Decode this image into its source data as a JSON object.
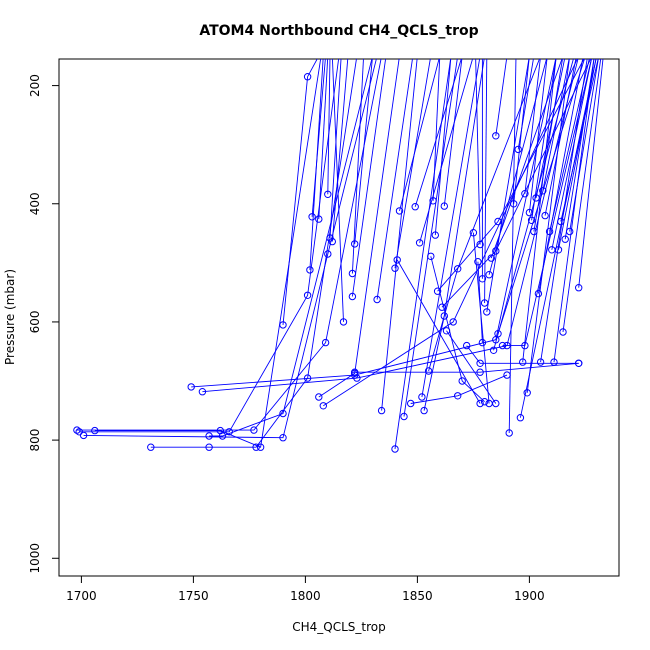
{
  "chart_data": {
    "type": "line",
    "title": "ATOM4 Northbound CH4_QCLS_trop",
    "xlabel": "CH4_QCLS_trop",
    "ylabel": "Pressure (mbar)",
    "xlim": [
      1690,
      1940
    ],
    "ylim": [
      1030,
      155
    ],
    "y_reversed": true,
    "grid": false,
    "series_color": "#0000ff",
    "xticks": [
      1700,
      1750,
      1800,
      1850,
      1900
    ],
    "yticks": [
      200,
      400,
      600,
      800,
      1000
    ],
    "series": [
      {
        "points": [
          [
            1731,
            812
          ],
          [
            1757,
            812
          ],
          [
            1778,
            812
          ],
          [
            1801,
            695
          ],
          [
            1823,
            150
          ]
        ]
      },
      {
        "points": [
          [
            1757,
            793
          ],
          [
            1763,
            793
          ],
          [
            1790,
            755
          ],
          [
            1830,
            150
          ]
        ]
      },
      {
        "points": [
          [
            1698,
            783
          ],
          [
            1777,
            783
          ],
          [
            1809,
            635
          ],
          [
            1834,
            150
          ]
        ]
      },
      {
        "points": [
          [
            1701,
            792
          ],
          [
            1790,
            796
          ],
          [
            1810,
            485
          ],
          [
            1832,
            150
          ]
        ]
      },
      {
        "points": [
          [
            1699,
            786
          ],
          [
            1766,
            786
          ],
          [
            1801,
            555
          ],
          [
            1815,
            150
          ]
        ]
      },
      {
        "points": [
          [
            1706,
            784
          ],
          [
            1762,
            784
          ],
          [
            1780,
            812
          ],
          [
            1807,
            150
          ]
        ]
      },
      {
        "points": [
          [
            1749,
            710
          ],
          [
            1822,
            690
          ],
          [
            1885,
            630
          ],
          [
            1912,
            150
          ]
        ]
      },
      {
        "points": [
          [
            1754,
            718
          ],
          [
            1823,
            695
          ],
          [
            1890,
            640
          ],
          [
            1922,
            150
          ]
        ]
      },
      {
        "points": [
          [
            1790,
            605
          ],
          [
            1801,
            185
          ],
          [
            1806,
            150
          ]
        ]
      },
      {
        "points": [
          [
            1802,
            512
          ],
          [
            1808,
            150
          ]
        ]
      },
      {
        "points": [
          [
            1803,
            422
          ],
          [
            1809,
            150
          ]
        ]
      },
      {
        "points": [
          [
            1806,
            426
          ],
          [
            1810,
            150
          ]
        ]
      },
      {
        "points": [
          [
            1810,
            384
          ],
          [
            1811,
            150
          ]
        ]
      },
      {
        "points": [
          [
            1811,
            458
          ],
          [
            1816,
            150
          ]
        ]
      },
      {
        "points": [
          [
            1812,
            464
          ],
          [
            1819,
            150
          ]
        ]
      },
      {
        "points": [
          [
            1817,
            600
          ],
          [
            1812,
            150
          ]
        ]
      },
      {
        "points": [
          [
            1821,
            518
          ],
          [
            1826,
            150
          ]
        ]
      },
      {
        "points": [
          [
            1822,
            468
          ],
          [
            1830,
            150
          ]
        ]
      },
      {
        "points": [
          [
            1821,
            557
          ],
          [
            1836,
            150
          ]
        ]
      },
      {
        "points": [
          [
            1806,
            727
          ],
          [
            1822,
            687
          ],
          [
            1842,
            150
          ]
        ]
      },
      {
        "points": [
          [
            1808,
            742
          ],
          [
            1866,
            600
          ],
          [
            1922,
            150
          ]
        ]
      },
      {
        "points": [
          [
            1832,
            562
          ],
          [
            1848,
            150
          ]
        ]
      },
      {
        "points": [
          [
            1834,
            750
          ],
          [
            1850,
            150
          ]
        ]
      },
      {
        "points": [
          [
            1840,
            509
          ],
          [
            1856,
            150
          ]
        ]
      },
      {
        "points": [
          [
            1840,
            815
          ],
          [
            1865,
            150
          ]
        ]
      },
      {
        "points": [
          [
            1842,
            412
          ],
          [
            1860,
            150
          ]
        ]
      },
      {
        "points": [
          [
            1844,
            760
          ],
          [
            1868,
            150
          ]
        ]
      },
      {
        "points": [
          [
            1847,
            738
          ],
          [
            1868,
            725
          ],
          [
            1890,
            690
          ]
        ]
      },
      {
        "points": [
          [
            1849,
            405
          ],
          [
            1870,
            150
          ]
        ]
      },
      {
        "points": [
          [
            1851,
            466
          ],
          [
            1875,
            150
          ]
        ]
      },
      {
        "points": [
          [
            1852,
            727
          ],
          [
            1878,
            150
          ]
        ]
      },
      {
        "points": [
          [
            1853,
            750
          ],
          [
            1862,
            590
          ],
          [
            1880,
            150
          ]
        ]
      },
      {
        "points": [
          [
            1855,
            683
          ],
          [
            1868,
            510
          ],
          [
            1905,
            150
          ]
        ]
      },
      {
        "points": [
          [
            1857,
            395
          ],
          [
            1860,
            150
          ]
        ]
      },
      {
        "points": [
          [
            1858,
            453
          ],
          [
            1865,
            150
          ]
        ]
      },
      {
        "points": [
          [
            1859,
            548
          ],
          [
            1886,
            430
          ],
          [
            1925,
            150
          ]
        ]
      },
      {
        "points": [
          [
            1861,
            575
          ],
          [
            1885,
            480
          ],
          [
            1928,
            150
          ]
        ]
      },
      {
        "points": [
          [
            1862,
            404
          ],
          [
            1870,
            150
          ]
        ]
      },
      {
        "points": [
          [
            1856,
            489
          ],
          [
            1870,
            700
          ],
          [
            1880,
            735
          ]
        ]
      },
      {
        "points": [
          [
            1841,
            495
          ],
          [
            1878,
            738
          ]
        ]
      },
      {
        "points": [
          [
            1822,
            685
          ],
          [
            1878,
            685
          ],
          [
            1922,
            670
          ]
        ]
      },
      {
        "points": [
          [
            1863,
            615
          ],
          [
            1885,
            738
          ]
        ]
      },
      {
        "points": [
          [
            1872,
            640
          ],
          [
            1878,
            670
          ],
          [
            1922,
            670
          ]
        ]
      },
      {
        "points": [
          [
            1875,
            449
          ],
          [
            1882,
            738
          ]
        ]
      },
      {
        "points": [
          [
            1877,
            498
          ],
          [
            1879,
            635
          ]
        ]
      },
      {
        "points": [
          [
            1878,
            469
          ],
          [
            1876,
            150
          ]
        ]
      },
      {
        "points": [
          [
            1879,
            527
          ],
          [
            1879,
            150
          ]
        ]
      },
      {
        "points": [
          [
            1880,
            568
          ],
          [
            1881,
            150
          ]
        ]
      },
      {
        "points": [
          [
            1881,
            583
          ],
          [
            1900,
            150
          ]
        ]
      },
      {
        "points": [
          [
            1882,
            520
          ],
          [
            1908,
            150
          ]
        ]
      },
      {
        "points": [
          [
            1883,
            492
          ],
          [
            1915,
            150
          ]
        ]
      },
      {
        "points": [
          [
            1884,
            648
          ],
          [
            1920,
            150
          ]
        ]
      },
      {
        "points": [
          [
            1885,
            285
          ],
          [
            1890,
            150
          ]
        ]
      },
      {
        "points": [
          [
            1886,
            620
          ],
          [
            1925,
            150
          ]
        ]
      },
      {
        "points": [
          [
            1888,
            640
          ],
          [
            1898,
            640
          ],
          [
            1928,
            150
          ]
        ]
      },
      {
        "points": [
          [
            1891,
            788
          ],
          [
            1894,
            150
          ]
        ]
      },
      {
        "points": [
          [
            1893,
            400
          ],
          [
            1900,
            150
          ]
        ]
      },
      {
        "points": [
          [
            1895,
            308
          ],
          [
            1902,
            150
          ]
        ]
      },
      {
        "points": [
          [
            1896,
            762
          ],
          [
            1930,
            150
          ]
        ]
      },
      {
        "points": [
          [
            1897,
            668
          ],
          [
            1912,
            150
          ]
        ]
      },
      {
        "points": [
          [
            1898,
            383
          ],
          [
            1905,
            150
          ]
        ]
      },
      {
        "points": [
          [
            1899,
            720
          ],
          [
            1918,
            150
          ]
        ]
      },
      {
        "points": [
          [
            1900,
            415
          ],
          [
            1908,
            150
          ]
        ]
      },
      {
        "points": [
          [
            1901,
            428
          ],
          [
            1912,
            150
          ]
        ]
      },
      {
        "points": [
          [
            1902,
            447
          ],
          [
            1915,
            150
          ]
        ]
      },
      {
        "points": [
          [
            1903,
            390
          ],
          [
            1916,
            150
          ]
        ]
      },
      {
        "points": [
          [
            1904,
            552
          ],
          [
            1924,
            150
          ]
        ]
      },
      {
        "points": [
          [
            1905,
            668
          ],
          [
            1926,
            150
          ]
        ]
      },
      {
        "points": [
          [
            1906,
            378
          ],
          [
            1918,
            150
          ]
        ]
      },
      {
        "points": [
          [
            1907,
            420
          ],
          [
            1921,
            150
          ]
        ]
      },
      {
        "points": [
          [
            1909,
            447
          ],
          [
            1927,
            150
          ]
        ]
      },
      {
        "points": [
          [
            1910,
            478
          ],
          [
            1928,
            150
          ]
        ]
      },
      {
        "points": [
          [
            1911,
            668
          ],
          [
            1929,
            150
          ]
        ]
      },
      {
        "points": [
          [
            1913,
            478
          ],
          [
            1930,
            150
          ]
        ]
      },
      {
        "points": [
          [
            1914,
            430
          ],
          [
            1931,
            150
          ]
        ]
      },
      {
        "points": [
          [
            1915,
            617
          ],
          [
            1932,
            150
          ]
        ]
      },
      {
        "points": [
          [
            1916,
            460
          ],
          [
            1929,
            150
          ]
        ]
      },
      {
        "points": [
          [
            1918,
            447
          ],
          [
            1931,
            150
          ]
        ]
      },
      {
        "points": [
          [
            1922,
            542
          ],
          [
            1933,
            150
          ]
        ]
      }
    ]
  }
}
